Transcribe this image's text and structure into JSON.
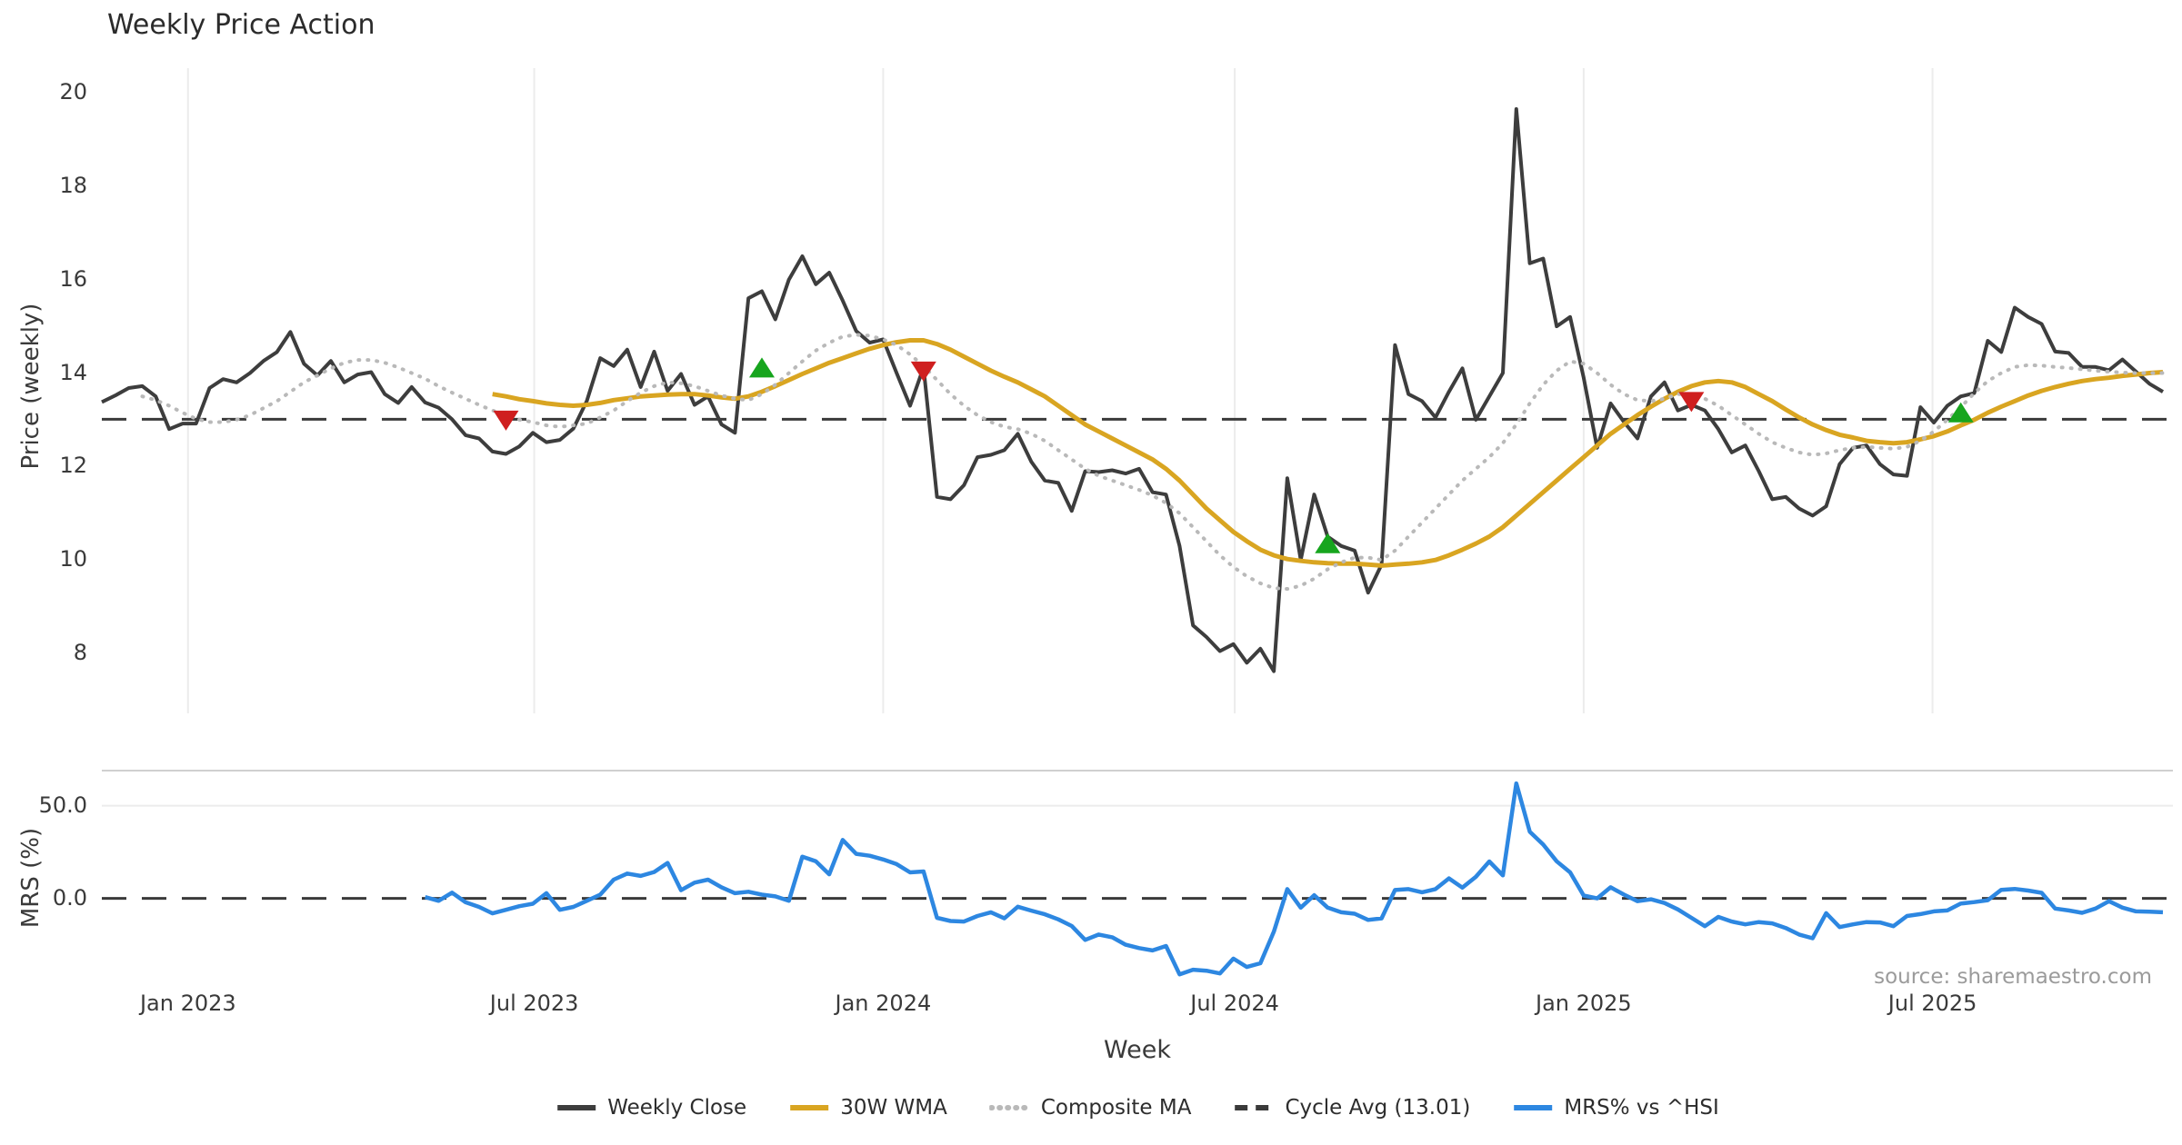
{
  "title": "Weekly Price Action",
  "xlabel": "Week",
  "source": "source: sharemaestro.com",
  "price_panel": {
    "ylabel": "Price (weekly)",
    "yticks": [
      {
        "label": "20",
        "value": 20
      },
      {
        "label": "18",
        "value": 18
      },
      {
        "label": "16",
        "value": 16
      },
      {
        "label": "14",
        "value": 14
      },
      {
        "label": "12",
        "value": 12
      },
      {
        "label": "10",
        "value": 10
      },
      {
        "label": "8",
        "value": 8
      }
    ]
  },
  "mrs_panel": {
    "ylabel": "MRS (%)",
    "yticks": [
      {
        "label": "50.0",
        "value": 50
      },
      {
        "label": "0.0",
        "value": 0
      }
    ]
  },
  "xticks": [
    {
      "label": "Jan 2023",
      "week": 6.4
    },
    {
      "label": "Jul 2023",
      "week": 32.1
    },
    {
      "label": "Jan 2024",
      "week": 58.0
    },
    {
      "label": "Jul 2024",
      "week": 84.1
    },
    {
      "label": "Jan 2025",
      "week": 110.0
    },
    {
      "label": "Jul 2025",
      "week": 135.9
    }
  ],
  "legend": [
    {
      "label": "Weekly Close",
      "style": "solid",
      "color": "#3d3d3d"
    },
    {
      "label": "30W WMA",
      "style": "solid",
      "color": "#d9a521"
    },
    {
      "label": "Composite MA",
      "style": "dotted",
      "color": "#b9b9b9"
    },
    {
      "label": "Cycle Avg (13.01)",
      "style": "dashed",
      "color": "#3a3a3a"
    },
    {
      "label": "MRS% vs ^HSI",
      "style": "solid",
      "color": "#2d87e1"
    }
  ],
  "colors": {
    "weekly_close": "#3d3d3d",
    "wma30": "#d9a521",
    "composite": "#b9b9b9",
    "cycle_avg": "#3a3a3a",
    "mrs": "#2d87e1",
    "buy_marker": "#17a51e",
    "sell_marker": "#cf1f1f",
    "grid": "#ececec",
    "panel_border": "#d0d0d0"
  },
  "chart_data": {
    "type": "line",
    "x_unit": "week_index",
    "weeks_total": 154,
    "cycle_avg": 13.01,
    "price_axis": {
      "ylim": [
        7.4,
        20.6
      ],
      "ticks": [
        20,
        18,
        16,
        14,
        12,
        10,
        8
      ]
    },
    "mrs_axis": {
      "ylim": [
        -48,
        68
      ],
      "ticks": [
        50,
        0
      ],
      "zero_line": "dashed"
    },
    "series": [
      {
        "name": "Weekly Close",
        "panel": "price",
        "start_week": 0,
        "values": [
          13.38,
          13.52,
          13.68,
          13.72,
          13.5,
          12.8,
          12.92,
          12.92,
          13.68,
          13.87,
          13.8,
          14.0,
          14.26,
          14.45,
          14.88,
          14.2,
          13.95,
          14.26,
          13.8,
          13.97,
          14.02,
          13.55,
          13.36,
          13.7,
          13.37,
          13.26,
          13.01,
          12.67,
          12.6,
          12.32,
          12.27,
          12.43,
          12.72,
          12.52,
          12.57,
          12.81,
          13.4,
          14.32,
          14.15,
          14.5,
          13.7,
          14.46,
          13.62,
          13.98,
          13.32,
          13.5,
          12.9,
          12.72,
          15.6,
          15.75,
          15.15,
          16.0,
          16.5,
          15.9,
          16.15,
          15.55,
          14.9,
          14.65,
          14.72,
          14.0,
          13.3,
          14.12,
          11.35,
          11.3,
          11.6,
          12.2,
          12.25,
          12.35,
          12.7,
          12.1,
          11.7,
          11.65,
          11.05,
          11.9,
          11.88,
          11.92,
          11.85,
          11.95,
          11.45,
          11.4,
          10.3,
          8.6,
          8.35,
          8.05,
          8.2,
          7.8,
          8.1,
          7.62,
          11.75,
          10.0,
          11.4,
          10.5,
          10.3,
          10.2,
          9.3,
          9.9,
          14.6,
          13.55,
          13.4,
          13.05,
          13.6,
          14.1,
          13.0,
          13.5,
          14.0,
          19.65,
          16.35,
          16.45,
          15.0,
          15.2,
          13.9,
          12.4,
          13.35,
          12.95,
          12.6,
          13.5,
          13.8,
          13.2,
          13.32,
          13.2,
          12.8,
          12.3,
          12.45,
          11.9,
          11.3,
          11.35,
          11.1,
          10.95,
          11.15,
          12.05,
          12.4,
          12.45,
          12.05,
          11.83,
          11.8,
          13.27,
          12.94,
          13.3,
          13.5,
          13.57,
          14.69,
          14.45,
          15.4,
          15.2,
          15.05,
          14.46,
          14.43,
          14.13,
          14.13,
          14.06,
          14.29,
          14.03,
          13.77,
          13.6
        ]
      },
      {
        "name": "30W WMA",
        "panel": "price",
        "start_week": 29,
        "values": [
          13.55,
          13.5,
          13.44,
          13.4,
          13.35,
          13.32,
          13.3,
          13.32,
          13.36,
          13.42,
          13.46,
          13.5,
          13.52,
          13.54,
          13.55,
          13.55,
          13.52,
          13.48,
          13.45,
          13.5,
          13.6,
          13.72,
          13.85,
          13.98,
          14.1,
          14.22,
          14.32,
          14.42,
          14.52,
          14.6,
          14.66,
          14.7,
          14.7,
          14.62,
          14.5,
          14.35,
          14.2,
          14.05,
          13.92,
          13.8,
          13.65,
          13.5,
          13.3,
          13.1,
          12.9,
          12.75,
          12.6,
          12.45,
          12.3,
          12.15,
          11.95,
          11.7,
          11.4,
          11.1,
          10.85,
          10.6,
          10.4,
          10.22,
          10.1,
          10.02,
          9.98,
          9.95,
          9.93,
          9.92,
          9.92,
          9.9,
          9.88,
          9.9,
          9.92,
          9.95,
          10.0,
          10.1,
          10.22,
          10.35,
          10.5,
          10.7,
          10.95,
          11.2,
          11.45,
          11.7,
          11.95,
          12.2,
          12.45,
          12.7,
          12.9,
          13.1,
          13.28,
          13.45,
          13.6,
          13.72,
          13.8,
          13.83,
          13.8,
          13.7,
          13.55,
          13.4,
          13.22,
          13.05,
          12.9,
          12.78,
          12.68,
          12.62,
          12.55,
          12.52,
          12.5,
          12.52,
          12.58,
          12.65,
          12.75,
          12.88,
          13.0,
          13.15,
          13.28,
          13.4,
          13.52,
          13.62,
          13.7,
          13.77,
          13.83,
          13.87,
          13.9,
          13.94,
          13.97,
          14.0,
          14.02
        ]
      },
      {
        "name": "Composite MA",
        "panel": "price",
        "start_week": 3,
        "values": [
          13.5,
          13.42,
          13.3,
          13.15,
          13.02,
          12.95,
          12.95,
          13.0,
          13.1,
          13.25,
          13.4,
          13.6,
          13.8,
          13.95,
          14.1,
          14.22,
          14.28,
          14.28,
          14.22,
          14.12,
          14.0,
          13.88,
          13.72,
          13.58,
          13.45,
          13.32,
          13.2,
          13.1,
          13.0,
          12.95,
          12.88,
          12.85,
          12.88,
          12.92,
          13.05,
          13.2,
          13.4,
          13.58,
          13.72,
          13.8,
          13.78,
          13.72,
          13.62,
          13.52,
          13.45,
          13.42,
          13.55,
          13.75,
          14.0,
          14.25,
          14.48,
          14.65,
          14.78,
          14.82,
          14.8,
          14.72,
          14.6,
          14.4,
          14.15,
          13.85,
          13.55,
          13.3,
          13.1,
          12.95,
          12.85,
          12.8,
          12.7,
          12.55,
          12.35,
          12.15,
          11.95,
          11.8,
          11.7,
          11.6,
          11.5,
          11.38,
          11.22,
          11.0,
          10.7,
          10.4,
          10.1,
          9.85,
          9.65,
          9.5,
          9.4,
          9.38,
          9.45,
          9.6,
          9.8,
          9.95,
          10.05,
          10.05,
          10.0,
          10.2,
          10.5,
          10.8,
          11.1,
          11.4,
          11.7,
          11.95,
          12.2,
          12.5,
          12.9,
          13.35,
          13.75,
          14.05,
          14.25,
          14.2,
          14.0,
          13.75,
          13.55,
          13.42,
          13.4,
          13.45,
          13.55,
          13.55,
          13.45,
          13.3,
          13.1,
          12.9,
          12.7,
          12.52,
          12.4,
          12.3,
          12.25,
          12.28,
          12.35,
          12.4,
          12.42,
          12.4,
          12.38,
          12.42,
          12.55,
          12.75,
          13.0,
          13.27,
          13.57,
          13.83,
          14.0,
          14.13,
          14.17,
          14.16,
          14.13,
          14.11,
          14.08,
          14.05,
          14.03,
          14.01,
          14.0,
          14.0,
          14.0
        ]
      },
      {
        "name": "MRS% vs ^HSI",
        "panel": "mrs",
        "start_week": 24,
        "values": [
          0.7,
          -1.3,
          3.1,
          -2.1,
          -4.6,
          -8.1,
          -6.2,
          -4.2,
          -2.9,
          2.8,
          -6.2,
          -4.6,
          -1.3,
          2.0,
          10.1,
          13.4,
          12.1,
          14.2,
          19.1,
          4.4,
          8.5,
          10.1,
          6.0,
          2.8,
          3.6,
          2.0,
          1.1,
          -1.3,
          22.5,
          20.0,
          13.0,
          31.5,
          24.0,
          23.0,
          21.0,
          18.5,
          14.0,
          14.5,
          -10.5,
          -12.2,
          -12.5,
          -9.5,
          -7.5,
          -10.8,
          -4.5,
          -6.6,
          -8.6,
          -11.3,
          -14.9,
          -22.4,
          -19.5,
          -21.0,
          -25.0,
          -26.8,
          -28.1,
          -25.7,
          -41.0,
          -38.5,
          -39.0,
          -40.5,
          -32.5,
          -37.0,
          -35.0,
          -18.0,
          5.0,
          -5.0,
          1.7,
          -5.0,
          -7.5,
          -8.3,
          -11.6,
          -10.8,
          4.5,
          5.0,
          3.3,
          5.0,
          10.8,
          5.8,
          11.6,
          19.9,
          12.4,
          62.0,
          36.0,
          29.0,
          20.0,
          14.0,
          1.5,
          0.0,
          6.0,
          2.0,
          -1.5,
          -0.5,
          -2.5,
          -6.0,
          -10.5,
          -15.0,
          -10.0,
          -12.5,
          -14.0,
          -12.8,
          -13.5,
          -16.0,
          -19.5,
          -21.5,
          -8.0,
          -15.5,
          -14.0,
          -12.8,
          -13.0,
          -15.0,
          -9.5,
          -8.5,
          -7.0,
          -6.5,
          -2.8,
          -2.0,
          -1.0,
          4.6,
          5.1,
          4.2,
          3.0,
          -5.5,
          -6.5,
          -7.8,
          -5.5,
          -1.5,
          -5.0,
          -7.0,
          -7.2,
          -7.5
        ]
      }
    ],
    "signals": {
      "sell": [
        {
          "week": 30,
          "value": 13.0
        },
        {
          "week": 61,
          "value": 14.05
        },
        {
          "week": 118,
          "value": 13.4
        }
      ],
      "buy": [
        {
          "week": 49,
          "value": 14.1
        },
        {
          "week": 91,
          "value": 10.34
        },
        {
          "week": 138,
          "value": 13.14
        }
      ]
    }
  }
}
